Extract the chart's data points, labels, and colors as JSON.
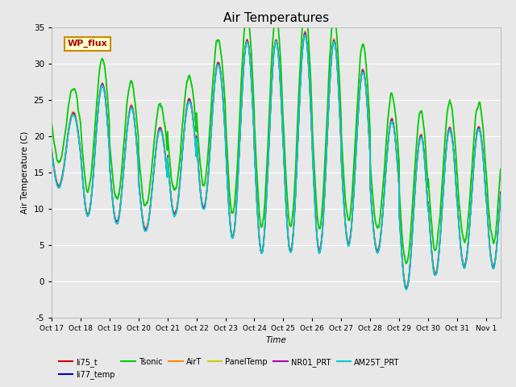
{
  "title": "Air Temperatures",
  "xlabel": "Time",
  "ylabel": "Air Temperature (C)",
  "ylim": [
    -5,
    35
  ],
  "yticks": [
    -5,
    0,
    5,
    10,
    15,
    20,
    25,
    30,
    35
  ],
  "xtick_labels": [
    "Oct 17",
    "Oct 18",
    "Oct 19",
    "Oct 20",
    "Oct 21",
    "Oct 22",
    "Oct 23",
    "Oct 24",
    "Oct 25",
    "Oct 26",
    "Oct 27",
    "Oct 28",
    "Oct 29",
    "Oct 30",
    "Oct 31",
    "Nov 1"
  ],
  "annotation_text": "WP_flux",
  "annotation_box_facecolor": "#ffffcc",
  "annotation_box_edgecolor": "#cc8800",
  "annotation_text_color": "#aa0000",
  "fig_facecolor": "#e8e8e8",
  "plot_bg_color": "#e8e8e8",
  "series": [
    {
      "name": "li75_t",
      "color": "#cc0000",
      "lw": 1.0
    },
    {
      "name": "li77_temp",
      "color": "#0000cc",
      "lw": 1.0
    },
    {
      "name": "Tsonic",
      "color": "#00cc00",
      "lw": 1.3
    },
    {
      "name": "AirT",
      "color": "#ff8800",
      "lw": 1.0
    },
    {
      "name": "PanelTemp",
      "color": "#cccc00",
      "lw": 1.0
    },
    {
      "name": "NR01_PRT",
      "color": "#aa00aa",
      "lw": 1.0
    },
    {
      "name": "AM25T_PRT",
      "color": "#00cccc",
      "lw": 1.3
    }
  ],
  "n_days": 15.5,
  "ppd": 144,
  "base_min": [
    13,
    9,
    8,
    7,
    9,
    10,
    6,
    4,
    4,
    4,
    5,
    4,
    -1,
    1,
    2,
    2
  ],
  "base_max": [
    23,
    27,
    24,
    21,
    25,
    30,
    33,
    33,
    34,
    33,
    29,
    22,
    20,
    21,
    21,
    22
  ],
  "tsonic_extra": 3.5,
  "title_fontsize": 11
}
